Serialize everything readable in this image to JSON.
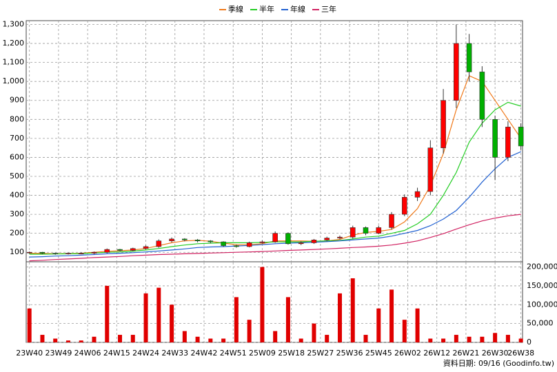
{
  "chart_data": {
    "type": "candlestick",
    "x": [
      0,
      4,
      8,
      12,
      16,
      20,
      24,
      28,
      32,
      36,
      40,
      44,
      48,
      52,
      56,
      60,
      64,
      68,
      72,
      76,
      80,
      84,
      88,
      92,
      96,
      100,
      104,
      108,
      112,
      116,
      120,
      124,
      128,
      132,
      136,
      140,
      144,
      148,
      152
    ],
    "xlim": [
      -1,
      152.5
    ],
    "xticks": [
      {
        "value": 0,
        "label": "23W40"
      },
      {
        "value": 9,
        "label": "23W49"
      },
      {
        "value": 18,
        "label": "24W06"
      },
      {
        "value": 27,
        "label": "24W15"
      },
      {
        "value": 36,
        "label": "24W24"
      },
      {
        "value": 45,
        "label": "24W33"
      },
      {
        "value": 54,
        "label": "24W42"
      },
      {
        "value": 63,
        "label": "24W51"
      },
      {
        "value": 72,
        "label": "25W09"
      },
      {
        "value": 81,
        "label": "25W18"
      },
      {
        "value": 90,
        "label": "25W27"
      },
      {
        "value": 99,
        "label": "25W36"
      },
      {
        "value": 108,
        "label": "25W45"
      },
      {
        "value": 117,
        "label": "26W02"
      },
      {
        "value": 126,
        "label": "26W12"
      },
      {
        "value": 135,
        "label": "26W21"
      },
      {
        "value": 144,
        "label": "26W30"
      },
      {
        "value": 152,
        "label": "26W38"
      }
    ],
    "open": [
      98,
      100,
      95,
      92,
      95,
      95,
      100,
      115,
      110,
      120,
      130,
      160,
      170,
      165,
      160,
      155,
      135,
      130,
      150,
      155,
      200,
      145,
      150,
      165,
      175,
      180,
      230,
      200,
      230,
      300,
      390,
      420,
      650,
      900,
      1200,
      1050,
      800,
      600,
      760
    ],
    "high": [
      104,
      102,
      98,
      98,
      99,
      104,
      120,
      118,
      124,
      136,
      168,
      178,
      174,
      170,
      164,
      158,
      140,
      156,
      162,
      210,
      205,
      158,
      170,
      182,
      188,
      240,
      236,
      240,
      312,
      405,
      440,
      690,
      960,
      1300,
      1250,
      1080,
      820,
      790,
      780
    ],
    "low": [
      93,
      90,
      87,
      88,
      90,
      90,
      95,
      105,
      104,
      114,
      124,
      152,
      158,
      152,
      148,
      128,
      124,
      126,
      146,
      150,
      140,
      138,
      144,
      158,
      168,
      172,
      190,
      195,
      220,
      290,
      370,
      400,
      620,
      860,
      1000,
      760,
      480,
      580,
      640
    ],
    "close": [
      100,
      95,
      92,
      95,
      95,
      100,
      115,
      110,
      120,
      130,
      160,
      170,
      165,
      160,
      155,
      135,
      130,
      150,
      155,
      200,
      145,
      150,
      165,
      175,
      180,
      230,
      200,
      230,
      300,
      390,
      420,
      650,
      900,
      1200,
      1050,
      800,
      600,
      760,
      660
    ],
    "up_color": "#ff0000",
    "down_color": "#00b000",
    "ylim": [
      50,
      1320
    ],
    "yticks": [
      100,
      200,
      300,
      400,
      500,
      600,
      700,
      800,
      900,
      {
        "value": 1000,
        "label": "1,000"
      },
      {
        "value": 1100,
        "label": "1,100"
      },
      {
        "value": 1200,
        "label": "1,200"
      },
      {
        "value": 1300,
        "label": "1,300"
      }
    ],
    "grid": true,
    "legend": "top",
    "lines": [
      {
        "name": "季線",
        "color": "#f07818",
        "values": [
          95,
          94,
          92,
          93,
          95,
          100,
          105,
          108,
          112,
          120,
          135,
          150,
          160,
          163,
          158,
          148,
          140,
          140,
          145,
          160,
          160,
          160,
          158,
          160,
          168,
          190,
          205,
          210,
          220,
          260,
          330,
          450,
          620,
          850,
          1030,
          1000,
          900,
          800,
          700
        ]
      },
      {
        "name": "半年",
        "color": "#22cc22",
        "values": [
          90,
          90,
          91,
          92,
          93,
          96,
          100,
          102,
          106,
          112,
          120,
          130,
          138,
          145,
          148,
          150,
          150,
          150,
          152,
          155,
          155,
          155,
          158,
          160,
          162,
          170,
          180,
          185,
          200,
          215,
          250,
          300,
          400,
          520,
          680,
          780,
          850,
          890,
          870
        ]
      },
      {
        "name": "年線",
        "color": "#1f5fd0",
        "values": [
          75,
          77,
          80,
          82,
          85,
          88,
          92,
          95,
          98,
          102,
          107,
          112,
          118,
          125,
          128,
          130,
          133,
          136,
          140,
          145,
          148,
          150,
          153,
          156,
          160,
          165,
          170,
          175,
          185,
          200,
          215,
          240,
          275,
          320,
          390,
          470,
          540,
          600,
          630
        ]
      },
      {
        "name": "三年",
        "color": "#d02060",
        "values": [
          55,
          58,
          62,
          65,
          68,
          72,
          75,
          78,
          82,
          85,
          88,
          90,
          92,
          94,
          96,
          98,
          100,
          102,
          104,
          107,
          110,
          112,
          115,
          118,
          121,
          125,
          128,
          132,
          138,
          148,
          160,
          178,
          198,
          222,
          245,
          265,
          280,
          292,
          300
        ]
      }
    ],
    "volume": {
      "color": "#e00000",
      "values": [
        90000,
        20000,
        10000,
        5000,
        5000,
        15000,
        150000,
        20000,
        20000,
        130000,
        145000,
        100000,
        30000,
        15000,
        10000,
        10000,
        120000,
        60000,
        200000,
        30000,
        120000,
        10000,
        50000,
        20000,
        130000,
        170000,
        20000,
        90000,
        140000,
        60000,
        90000,
        10000,
        10000,
        20000,
        15000,
        15000,
        25000,
        20000,
        10000
      ],
      "ylim": [
        0,
        212000
      ],
      "yticks": [
        0,
        {
          "value": 50000,
          "label": "50,000"
        },
        {
          "value": 100000,
          "label": "100,000"
        },
        {
          "value": 150000,
          "label": "150,000"
        },
        {
          "value": 200000,
          "label": "200,000"
        }
      ]
    },
    "footer": "資料日期: 09/16 (Goodinfo.tw)"
  }
}
